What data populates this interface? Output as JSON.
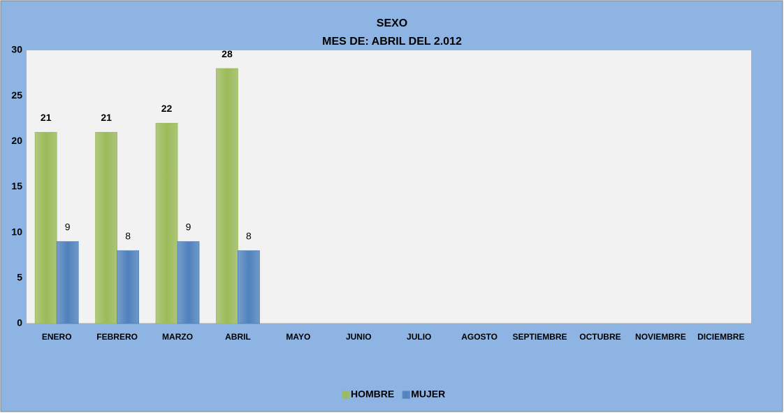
{
  "chart_data": {
    "type": "bar",
    "title": "SEXO",
    "subtitle": "MES DE: ABRIL DEL 2.012",
    "categories": [
      "ENERO",
      "FEBRERO",
      "MARZO",
      "ABRIL",
      "MAYO",
      "JUNIO",
      "JULIO",
      "AGOSTO",
      "SEPTIEMBRE",
      "OCTUBRE",
      "NOVIEMBRE",
      "DICIEMBRE"
    ],
    "series": [
      {
        "name": "HOMBRE",
        "color": "#9bbb59",
        "values": [
          21,
          21,
          22,
          28,
          null,
          null,
          null,
          null,
          null,
          null,
          null,
          null
        ]
      },
      {
        "name": "MUJER",
        "color": "#4f81bd",
        "values": [
          9,
          8,
          9,
          8,
          null,
          null,
          null,
          null,
          null,
          null,
          null,
          null
        ]
      }
    ],
    "ylim": [
      0,
      30
    ],
    "yticks": [
      0,
      5,
      10,
      15,
      20,
      25,
      30
    ],
    "grid": false,
    "legend": "bottom"
  }
}
